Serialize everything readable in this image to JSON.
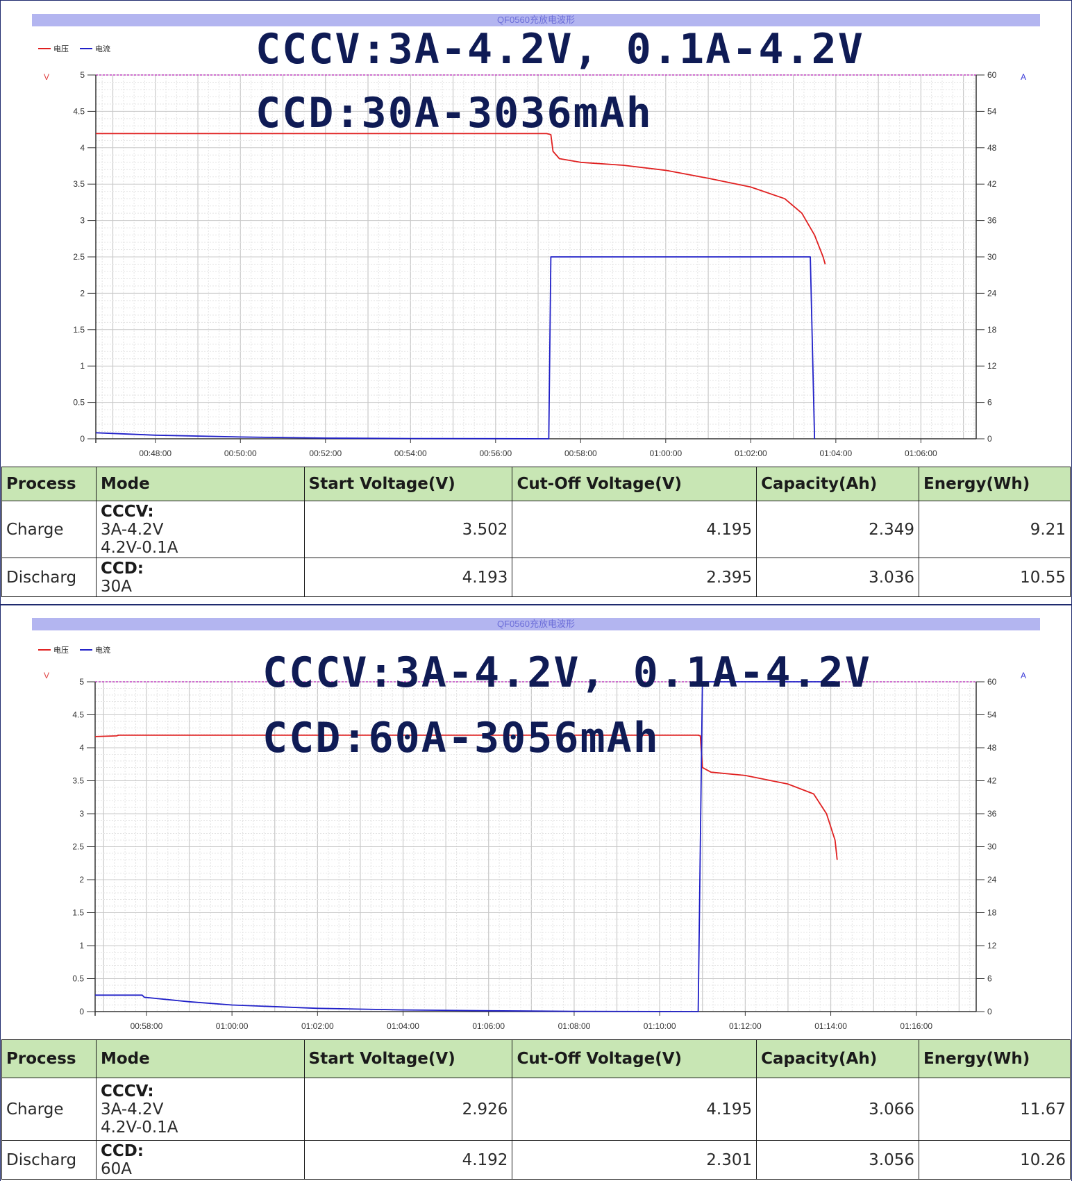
{
  "panels": [
    {
      "title": "QF0560充放电波形",
      "legend": [
        {
          "label": "电压",
          "color": "#e02020"
        },
        {
          "label": "电流",
          "color": "#2020c8"
        }
      ],
      "unit_left": "V",
      "unit_right": "A",
      "overlay_line1": "CCCV:3A-4.2V, 0.1A-4.2V",
      "overlay_line2": "CCD:30A-3036mAh",
      "table": {
        "headers": [
          "Process",
          "Mode",
          "Start Voltage(V)",
          "Cut-Off Voltage(V)",
          "Capacity(Ah)",
          "Energy(Wh)"
        ],
        "rows": [
          {
            "process": "Charge",
            "mode_title": "CCCV:",
            "mode_lines": [
              "3A-4.2V",
              "4.2V-0.1A"
            ],
            "start": "3.502",
            "cutoff": "4.195",
            "capacity": "2.349",
            "energy": "9.21"
          },
          {
            "process": "Discharg",
            "mode_title": "CCD:",
            "mode_lines": [
              "30A"
            ],
            "start": "4.193",
            "cutoff": "2.395",
            "capacity": "3.036",
            "energy": "10.55"
          }
        ]
      }
    },
    {
      "title": "QF0560充放电波形",
      "legend": [
        {
          "label": "电压",
          "color": "#e02020"
        },
        {
          "label": "电流",
          "color": "#2020c8"
        }
      ],
      "unit_left": "V",
      "unit_right": "A",
      "overlay_line1": "CCCV:3A-4.2V, 0.1A-4.2V",
      "overlay_line2": "CCD:60A-3056mAh",
      "table": {
        "headers": [
          "Process",
          "Mode",
          "Start Voltage(V)",
          "Cut-Off Voltage(V)",
          "Capacity(Ah)",
          "Energy(Wh)"
        ],
        "rows": [
          {
            "process": "Charge",
            "mode_title": "CCCV:",
            "mode_lines": [
              "3A-4.2V",
              "4.2V-0.1A"
            ],
            "start": "2.926",
            "cutoff": "4.195",
            "capacity": "3.066",
            "energy": "11.67"
          },
          {
            "process": "Discharg",
            "mode_title": "CCD:",
            "mode_lines": [
              "60A"
            ],
            "start": "4.192",
            "cutoff": "2.301",
            "capacity": "3.056",
            "energy": "10.26"
          }
        ]
      }
    }
  ],
  "chart_data": [
    {
      "type": "line",
      "title": "QF0560充放电波形",
      "ylabel_left": "V",
      "ylabel_right": "A",
      "ylim_left": [
        0,
        5
      ],
      "ylim_right": [
        0,
        60
      ],
      "yticks_left": [
        "0",
        "0.5",
        "1",
        "1.5",
        "2",
        "2.5",
        "3",
        "3.5",
        "4",
        "4.5",
        "5"
      ],
      "yticks_right": [
        "0",
        "6",
        "12",
        "18",
        "24",
        "30",
        "36",
        "42",
        "48",
        "54",
        "60"
      ],
      "xlim_min": [
        46.6,
        67.3
      ],
      "xticks": [
        {
          "label": "00:48:00",
          "min": 48
        },
        {
          "label": "00:50:00",
          "min": 50
        },
        {
          "label": "00:52:00",
          "min": 52
        },
        {
          "label": "00:54:00",
          "min": 54
        },
        {
          "label": "00:56:00",
          "min": 56
        },
        {
          "label": "00:58:00",
          "min": 58
        },
        {
          "label": "01:00:00",
          "min": 60
        },
        {
          "label": "01:02:00",
          "min": 62
        },
        {
          "label": "01:04:00",
          "min": 64
        },
        {
          "label": "01:06:00",
          "min": 66
        }
      ],
      "grid": true,
      "legend_position": "top-left",
      "series": [
        {
          "name": "电压",
          "axis": "left",
          "color": "#e02020",
          "points": [
            [
              46.6,
              4.195
            ],
            [
              57.2,
              4.195
            ],
            [
              57.3,
              4.18
            ],
            [
              57.35,
              3.95
            ],
            [
              57.5,
              3.85
            ],
            [
              58,
              3.8
            ],
            [
              59,
              3.76
            ],
            [
              60,
              3.69
            ],
            [
              61,
              3.58
            ],
            [
              62,
              3.46
            ],
            [
              62.8,
              3.3
            ],
            [
              63.2,
              3.1
            ],
            [
              63.5,
              2.8
            ],
            [
              63.7,
              2.5
            ],
            [
              63.75,
              2.4
            ]
          ]
        },
        {
          "name": "电流",
          "axis": "right",
          "color": "#2020c8",
          "points": [
            [
              46.6,
              1.0
            ],
            [
              48,
              0.6
            ],
            [
              50,
              0.3
            ],
            [
              52,
              0.12
            ],
            [
              54,
              0.05
            ],
            [
              56,
              0.02
            ],
            [
              57.25,
              0.0
            ],
            [
              57.3,
              30.0
            ],
            [
              63.4,
              30.0
            ],
            [
              63.5,
              0.0
            ]
          ]
        }
      ]
    },
    {
      "type": "line",
      "title": "QF0560充放电波形",
      "ylabel_left": "V",
      "ylabel_right": "A",
      "ylim_left": [
        0,
        5
      ],
      "ylim_right": [
        0,
        60
      ],
      "yticks_left": [
        "0",
        "0.5",
        "1",
        "1.5",
        "2",
        "2.5",
        "3",
        "3.5",
        "4",
        "4.5",
        "5"
      ],
      "yticks_right": [
        "0",
        "6",
        "12",
        "18",
        "24",
        "30",
        "36",
        "42",
        "48",
        "54",
        "60"
      ],
      "xlim_min": [
        56.8,
        77.4
      ],
      "xticks": [
        {
          "label": "00:58:00",
          "min": 58
        },
        {
          "label": "01:00:00",
          "min": 60
        },
        {
          "label": "01:02:00",
          "min": 62
        },
        {
          "label": "01:04:00",
          "min": 64
        },
        {
          "label": "01:06:00",
          "min": 66
        },
        {
          "label": "01:08:00",
          "min": 68
        },
        {
          "label": "01:10:00",
          "min": 70
        },
        {
          "label": "01:12:00",
          "min": 72
        },
        {
          "label": "01:14:00",
          "min": 74
        },
        {
          "label": "01:16:00",
          "min": 76
        }
      ],
      "grid": true,
      "legend_position": "top-left",
      "series": [
        {
          "name": "电压",
          "axis": "left",
          "color": "#e02020",
          "points": [
            [
              56.8,
              4.17
            ],
            [
              57.3,
              4.18
            ],
            [
              57.35,
              4.19
            ],
            [
              70.9,
              4.19
            ],
            [
              70.95,
              4.18
            ],
            [
              71.0,
              3.7
            ],
            [
              71.2,
              3.63
            ],
            [
              72,
              3.58
            ],
            [
              73,
              3.45
            ],
            [
              73.6,
              3.3
            ],
            [
              73.9,
              3.0
            ],
            [
              74.1,
              2.6
            ],
            [
              74.15,
              2.3
            ]
          ]
        },
        {
          "name": "电流",
          "axis": "right",
          "color": "#2020c8",
          "points": [
            [
              56.8,
              3.0
            ],
            [
              57.9,
              3.0
            ],
            [
              57.95,
              2.6
            ],
            [
              59,
              1.8
            ],
            [
              60,
              1.2
            ],
            [
              62,
              0.6
            ],
            [
              64,
              0.3
            ],
            [
              66,
              0.15
            ],
            [
              68,
              0.05
            ],
            [
              70.9,
              0.0
            ],
            [
              71.0,
              60.0
            ],
            [
              74.1,
              60.0
            ]
          ]
        }
      ]
    }
  ]
}
